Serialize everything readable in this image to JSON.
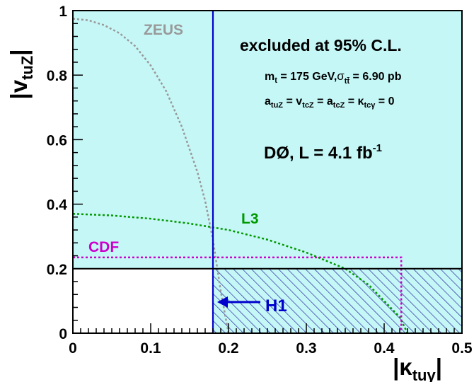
{
  "chart_data": {
    "type": "area",
    "title": "",
    "x_axis": {
      "label_main": "|κ",
      "label_sub": "tuγ",
      "label_close": "|",
      "range": [
        0,
        0.5
      ],
      "ticks": [
        0,
        0.1,
        0.2,
        0.3,
        0.4,
        0.5
      ],
      "tick_labels": [
        "0",
        "0.1",
        "0.2",
        "0.3",
        "0.4",
        "0.5"
      ]
    },
    "y_axis": {
      "label_main": "|v",
      "label_sub": "tuZ",
      "label_close": "|",
      "range": [
        0,
        1
      ],
      "ticks": [
        0,
        0.2,
        0.4,
        0.6,
        0.8,
        1
      ],
      "tick_labels": [
        "0",
        "0.2",
        "0.4",
        "0.6",
        "0.8",
        "1"
      ]
    },
    "grid": false,
    "legend": "none",
    "excluded_region": {
      "description_text": "excluded at 95% C.L.",
      "color": "#c6f7f7",
      "boundary_x": 0.18,
      "boundary_y": 0.2
    },
    "series": [
      {
        "name": "ZEUS",
        "style": "dotted",
        "color": "#999999",
        "x": [
          0,
          0.02,
          0.04,
          0.06,
          0.08,
          0.1,
          0.12,
          0.14,
          0.16,
          0.17,
          0.18,
          0.19,
          0.2
        ],
        "y": [
          0.975,
          0.97,
          0.955,
          0.93,
          0.89,
          0.83,
          0.75,
          0.64,
          0.5,
          0.41,
          0.29,
          0.13,
          0
        ]
      },
      {
        "name": "L3",
        "style": "dotted",
        "color": "#009900",
        "x": [
          0,
          0.05,
          0.1,
          0.15,
          0.2,
          0.25,
          0.3,
          0.35,
          0.38,
          0.4,
          0.42,
          0.43
        ],
        "y": [
          0.37,
          0.365,
          0.355,
          0.34,
          0.32,
          0.29,
          0.25,
          0.2,
          0.15,
          0.1,
          0.05,
          0
        ]
      },
      {
        "name": "CDF",
        "style": "dotted",
        "color": "#cc00cc",
        "x": [
          0,
          0.422,
          0.422
        ],
        "y": [
          0.235,
          0.235,
          0
        ]
      },
      {
        "name": "H1",
        "style": "solid",
        "color": "#0000cc",
        "x": [
          0.18,
          0.18
        ],
        "y": [
          0,
          1
        ]
      },
      {
        "name": "",
        "style": "solid",
        "color": "#000000",
        "x": [
          0,
          0.5
        ],
        "y": [
          0.2,
          0.2
        ]
      }
    ],
    "hatched_region": {
      "color": "#000099",
      "x_range": [
        0.18,
        0.5
      ],
      "y_range": [
        0,
        0.2
      ]
    },
    "annotations": {
      "mass_line_text": "m",
      "mass_line_sub": "t",
      "mass_line_rest": " = 175 GeV,",
      "sigma_symbol": "σ",
      "sigma_sub": "tt̄",
      "sigma_rest": " = 6.90 pb",
      "couplings_a1": "a",
      "couplings_a1_sub": "tuZ",
      "couplings_v": " = v",
      "couplings_v_sub": "tcZ",
      "couplings_a2": " = a",
      "couplings_a2_sub": "tcZ",
      "couplings_k": " = κ",
      "couplings_k_sub": "tcγ",
      "couplings_end": " = 0",
      "experiment_text": "DØ, L = 4.1 fb",
      "experiment_sup": "-1",
      "h1_arrow_value_x": 0.18
    }
  }
}
